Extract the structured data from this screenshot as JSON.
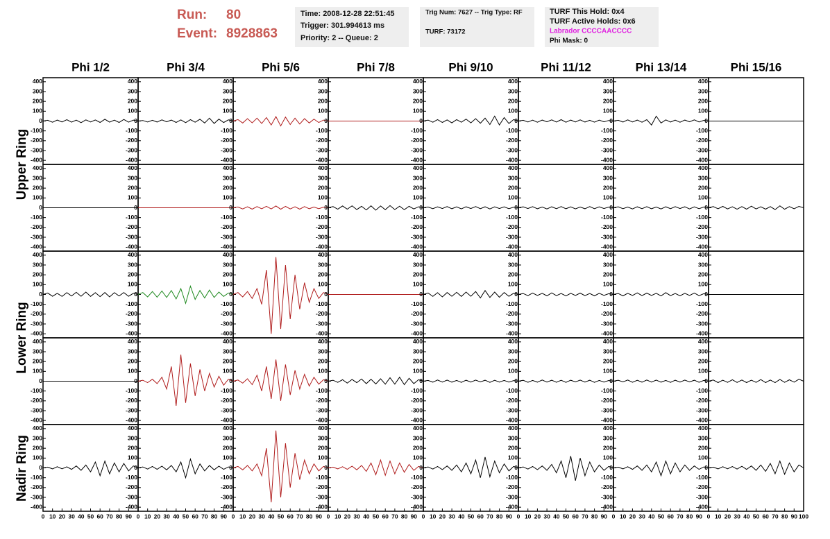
{
  "header": {
    "run_label": "Run:",
    "run": "80",
    "event_label": "Event:",
    "event": "8928863",
    "box1": [
      "Time: 2008-12-28 22:51:45",
      "Trigger: 301.994613 ms",
      "Priority: 2 -- Queue: 2"
    ],
    "box2": [
      "Trig Num: 7627 -- Trig Type: RF",
      "TURF: 73172"
    ],
    "box3": [
      "TURF This Hold: 0x4",
      "TURF Active Holds: 0x6",
      "Labrador CCCCAACCCC",
      "Phi Mask: 0"
    ]
  },
  "columns": [
    "Phi 1/2",
    "Phi 3/4",
    "Phi 5/6",
    "Phi 7/8",
    "Phi 9/10",
    "Phi 11/12",
    "Phi 13/14",
    "Phi 15/16"
  ],
  "rings": [
    "Upper Ring",
    "Lower Ring",
    "Nadir Ring"
  ],
  "chart_data": {
    "type": "line",
    "x": [
      0,
      5,
      10,
      15,
      20,
      25,
      30,
      35,
      40,
      45,
      50,
      55,
      60,
      65,
      70,
      75,
      80,
      85,
      90,
      95,
      100
    ],
    "xlim": [
      0,
      100
    ],
    "xticks": [
      0,
      10,
      20,
      30,
      40,
      50,
      60,
      70,
      80,
      90,
      100
    ],
    "ylim": [
      -420,
      420
    ],
    "yticks": [
      400,
      300,
      200,
      100,
      0,
      -100,
      -200,
      -300,
      -400
    ],
    "series": [
      {
        "color": "#000000",
        "values": [
          0,
          8,
          -12,
          10,
          -9,
          14,
          -11,
          9,
          -16,
          12,
          -9,
          11,
          -14,
          18,
          -11,
          9,
          -14,
          16,
          -11,
          9,
          0
        ]
      },
      {
        "color": "#000000",
        "values": [
          0,
          6,
          -9,
          8,
          -10,
          12,
          -8,
          10,
          -14,
          12,
          -16,
          14,
          -12,
          18,
          -20,
          30,
          -25,
          20,
          -15,
          12,
          0
        ]
      },
      {
        "color": "#b01c1c",
        "values": [
          0,
          15,
          -20,
          25,
          -18,
          30,
          -25,
          35,
          -40,
          45,
          -50,
          40,
          -35,
          30,
          -30,
          25,
          -20,
          20,
          -15,
          10,
          0
        ]
      },
      {
        "color": "#b01c1c",
        "values": [
          0,
          0,
          0,
          0,
          0,
          0,
          0,
          0,
          0,
          0,
          0,
          0,
          0,
          0,
          0,
          0,
          0,
          0,
          0,
          0,
          0
        ]
      },
      {
        "color": "#000000",
        "values": [
          0,
          10,
          -12,
          15,
          -14,
          12,
          -18,
          15,
          -12,
          20,
          -18,
          25,
          -22,
          30,
          -35,
          50,
          -40,
          35,
          -25,
          15,
          0
        ]
      },
      {
        "color": "#000000",
        "values": [
          0,
          8,
          -10,
          9,
          -12,
          10,
          -8,
          12,
          -10,
          14,
          -12,
          10,
          -9,
          12,
          -10,
          8,
          -11,
          9,
          -8,
          6,
          0
        ]
      },
      {
        "color": "#000000",
        "values": [
          0,
          8,
          -10,
          12,
          -9,
          10,
          -12,
          14,
          -40,
          50,
          -20,
          12,
          -10,
          9,
          -12,
          10,
          -8,
          12,
          -9,
          7,
          0
        ]
      },
      {
        "color": "#000000",
        "values": [
          0,
          0,
          0,
          0,
          0,
          0,
          0,
          0,
          0,
          0,
          0,
          0,
          0,
          0,
          0,
          0,
          0,
          0,
          0,
          0,
          0
        ]
      },
      {
        "color": "#000000",
        "values": [
          0,
          0,
          0,
          0,
          0,
          0,
          0,
          0,
          0,
          0,
          0,
          0,
          0,
          0,
          0,
          0,
          0,
          0,
          0,
          0,
          0
        ]
      },
      {
        "color": "#b01c1c",
        "values": [
          0,
          0,
          0,
          0,
          0,
          0,
          0,
          0,
          0,
          0,
          0,
          0,
          0,
          0,
          0,
          0,
          0,
          0,
          0,
          0,
          0
        ]
      },
      {
        "color": "#b01c1c",
        "values": [
          0,
          8,
          -12,
          10,
          -14,
          12,
          -10,
          15,
          -12,
          18,
          -15,
          14,
          -12,
          10,
          -14,
          12,
          -10,
          8,
          -9,
          6,
          0
        ]
      },
      {
        "color": "#000000",
        "values": [
          0,
          12,
          -15,
          18,
          -14,
          20,
          -18,
          15,
          -22,
          20,
          -25,
          18,
          -20,
          22,
          -18,
          16,
          -20,
          15,
          -12,
          10,
          0
        ]
      },
      {
        "color": "#000000",
        "values": [
          0,
          8,
          -9,
          10,
          -8,
          12,
          -10,
          9,
          -11,
          10,
          -8,
          12,
          -9,
          10,
          -12,
          9,
          -8,
          10,
          -9,
          6,
          0
        ]
      },
      {
        "color": "#000000",
        "values": [
          0,
          9,
          -8,
          11,
          -10,
          8,
          -12,
          10,
          -9,
          12,
          -10,
          9,
          -11,
          8,
          -10,
          12,
          -9,
          10,
          -8,
          7,
          0
        ]
      },
      {
        "color": "#000000",
        "values": [
          0,
          10,
          -9,
          8,
          -12,
          10,
          -9,
          11,
          -10,
          8,
          -12,
          10,
          -9,
          11,
          -8,
          10,
          -12,
          9,
          -10,
          8,
          0
        ]
      },
      {
        "color": "#000000",
        "values": [
          0,
          12,
          -10,
          14,
          -12,
          10,
          -15,
          12,
          -14,
          16,
          -12,
          10,
          -14,
          12,
          -18,
          20,
          -15,
          12,
          -10,
          14,
          0
        ]
      },
      {
        "color": "#000000",
        "values": [
          0,
          15,
          -18,
          12,
          -20,
          18,
          -15,
          22,
          -18,
          25,
          -20,
          18,
          -22,
          20,
          -25,
          18,
          -15,
          20,
          -18,
          12,
          0
        ]
      },
      {
        "color": "#1f8a1f",
        "values": [
          0,
          20,
          -25,
          30,
          -28,
          35,
          -30,
          40,
          -45,
          60,
          -90,
          85,
          -50,
          40,
          -35,
          45,
          -30,
          25,
          -20,
          15,
          0
        ]
      },
      {
        "color": "#b01c1c",
        "values": [
          0,
          20,
          -25,
          30,
          -40,
          60,
          -100,
          250,
          -400,
          380,
          -350,
          300,
          -250,
          200,
          -150,
          120,
          -80,
          60,
          -40,
          20,
          0
        ]
      },
      {
        "color": "#b01c1c",
        "values": [
          0,
          0,
          0,
          0,
          0,
          0,
          0,
          0,
          0,
          0,
          0,
          0,
          0,
          0,
          0,
          0,
          0,
          0,
          0,
          0,
          0
        ]
      },
      {
        "color": "#000000",
        "values": [
          0,
          15,
          -20,
          18,
          -25,
          20,
          -18,
          22,
          -20,
          25,
          -18,
          30,
          -35,
          40,
          -30,
          25,
          -28,
          20,
          -18,
          12,
          0
        ]
      },
      {
        "color": "#000000",
        "values": [
          0,
          10,
          -12,
          15,
          -10,
          12,
          -14,
          16,
          -12,
          10,
          -15,
          12,
          -10,
          14,
          -12,
          10,
          -14,
          12,
          -9,
          8,
          0
        ]
      },
      {
        "color": "#000000",
        "values": [
          0,
          10,
          -14,
          12,
          -10,
          16,
          -12,
          14,
          -10,
          12,
          -15,
          18,
          -12,
          10,
          -14,
          12,
          -10,
          15,
          -12,
          8,
          0
        ]
      },
      {
        "color": "#000000",
        "values": [
          0,
          0,
          0,
          0,
          0,
          0,
          0,
          0,
          0,
          0,
          0,
          0,
          0,
          0,
          0,
          0,
          0,
          0,
          0,
          0,
          0
        ]
      },
      {
        "color": "#000000",
        "values": [
          0,
          0,
          0,
          0,
          0,
          0,
          0,
          0,
          0,
          0,
          0,
          0,
          0,
          0,
          0,
          0,
          0,
          0,
          0,
          0,
          0
        ]
      },
      {
        "color": "#b01c1c",
        "values": [
          0,
          10,
          -15,
          20,
          -25,
          40,
          -80,
          150,
          -250,
          270,
          -220,
          180,
          -150,
          120,
          -100,
          80,
          -60,
          50,
          -40,
          20,
          0
        ]
      },
      {
        "color": "#b01c1c",
        "values": [
          0,
          12,
          -20,
          25,
          -35,
          60,
          -100,
          150,
          -180,
          220,
          -200,
          170,
          -140,
          110,
          -80,
          70,
          -50,
          40,
          -30,
          15,
          0
        ]
      },
      {
        "color": "#000000",
        "values": [
          0,
          10,
          -12,
          15,
          -20,
          18,
          -15,
          22,
          -25,
          20,
          -28,
          25,
          -30,
          35,
          -30,
          40,
          -35,
          30,
          -25,
          15,
          0
        ]
      },
      {
        "color": "#000000",
        "values": [
          0,
          8,
          -10,
          12,
          -9,
          11,
          -10,
          8,
          -12,
          10,
          -9,
          11,
          -8,
          10,
          -12,
          9,
          -10,
          8,
          -9,
          6,
          0
        ]
      },
      {
        "color": "#000000",
        "values": [
          0,
          9,
          -11,
          8,
          -10,
          12,
          -9,
          10,
          -11,
          9,
          -12,
          10,
          -8,
          11,
          -9,
          10,
          -12,
          8,
          -10,
          7,
          0
        ]
      },
      {
        "color": "#000000",
        "values": [
          0,
          10,
          -8,
          12,
          -11,
          9,
          -10,
          12,
          -9,
          11,
          -10,
          8,
          -12,
          10,
          -9,
          11,
          -8,
          10,
          -11,
          8,
          0
        ]
      },
      {
        "color": "#000000",
        "values": [
          0,
          12,
          -14,
          10,
          -12,
          15,
          -13,
          12,
          -14,
          10,
          -12,
          16,
          -14,
          12,
          -15,
          18,
          -12,
          14,
          -10,
          20,
          0
        ]
      },
      {
        "color": "#000000",
        "values": [
          0,
          8,
          -10,
          12,
          -9,
          11,
          -15,
          20,
          -25,
          30,
          -40,
          60,
          -80,
          70,
          -60,
          50,
          -40,
          45,
          -30,
          20,
          0
        ]
      },
      {
        "color": "#000000",
        "values": [
          0,
          10,
          -12,
          15,
          -14,
          18,
          -20,
          25,
          -40,
          60,
          -100,
          90,
          -60,
          40,
          -30,
          25,
          -20,
          18,
          -15,
          10,
          0
        ]
      },
      {
        "color": "#b01c1c",
        "values": [
          0,
          15,
          -20,
          25,
          -30,
          40,
          -80,
          200,
          -350,
          380,
          -300,
          250,
          -200,
          150,
          -120,
          80,
          -60,
          40,
          -30,
          15,
          0
        ]
      },
      {
        "color": "#b01c1c",
        "values": [
          0,
          8,
          -10,
          12,
          -15,
          18,
          -20,
          25,
          -35,
          50,
          -70,
          80,
          -75,
          70,
          -60,
          50,
          -45,
          35,
          -25,
          15,
          0
        ]
      },
      {
        "color": "#000000",
        "values": [
          0,
          10,
          -12,
          15,
          -18,
          20,
          -25,
          30,
          -40,
          50,
          -60,
          80,
          -100,
          110,
          -90,
          70,
          -50,
          40,
          -30,
          15,
          0
        ]
      },
      {
        "color": "#000000",
        "values": [
          0,
          10,
          -12,
          14,
          -18,
          20,
          -25,
          35,
          -50,
          70,
          -100,
          120,
          -130,
          100,
          -80,
          60,
          -40,
          30,
          -25,
          15,
          0
        ]
      },
      {
        "color": "#000000",
        "values": [
          0,
          8,
          -10,
          12,
          -15,
          20,
          -25,
          30,
          -40,
          60,
          -80,
          70,
          -60,
          50,
          -40,
          30,
          -25,
          20,
          -15,
          10,
          0
        ]
      },
      {
        "color": "#000000",
        "values": [
          0,
          8,
          -10,
          12,
          -9,
          14,
          -12,
          16,
          -15,
          20,
          -25,
          30,
          -35,
          45,
          -60,
          70,
          -65,
          50,
          -40,
          30,
          0
        ]
      }
    ]
  }
}
